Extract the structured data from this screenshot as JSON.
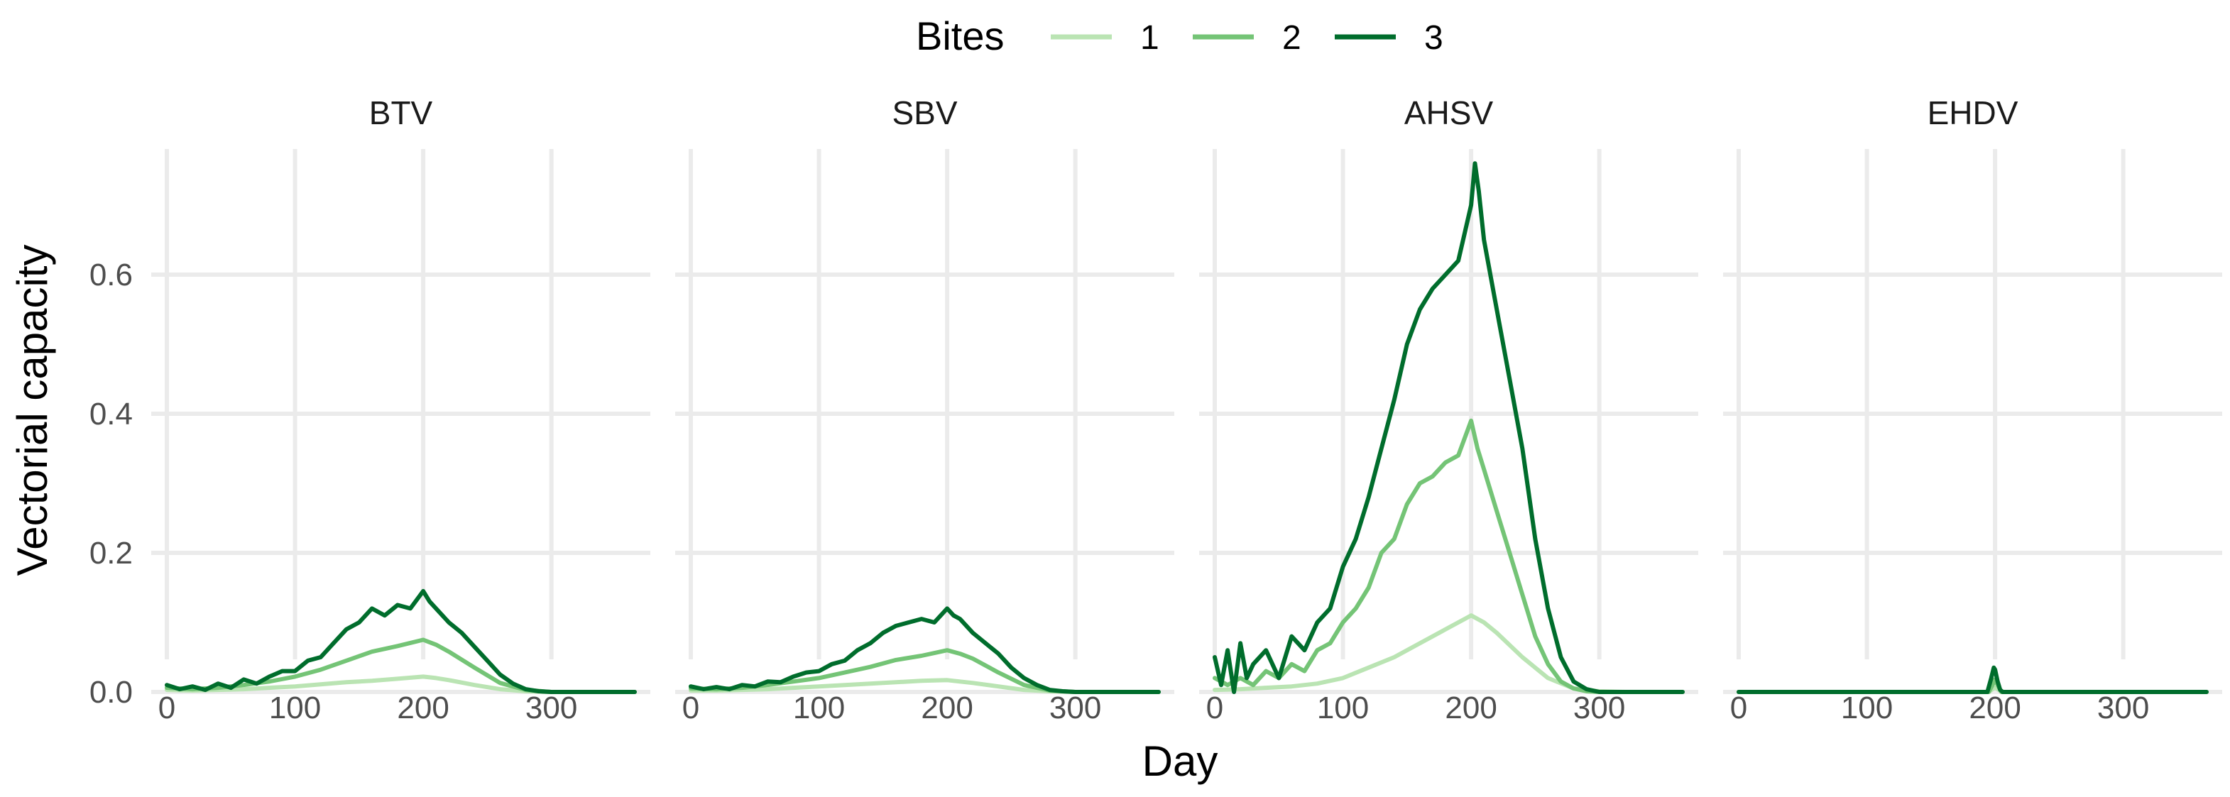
{
  "chart_data": {
    "type": "line",
    "facet_variable": "virus",
    "xlabel": "Day",
    "ylabel": "Vectorial capacity",
    "xlim": [
      0,
      365
    ],
    "ylim": [
      0,
      0.75
    ],
    "x_ticks": [
      0,
      100,
      200,
      300
    ],
    "y_ticks": [
      0.0,
      0.2,
      0.4,
      0.6
    ],
    "x_tick_labels": [
      "0",
      "100",
      "200",
      "300"
    ],
    "y_tick_labels": [
      "0.0",
      "0.2",
      "0.4",
      "0.6"
    ],
    "grid": true,
    "legend": {
      "title": "Bites",
      "position": "top",
      "entries": [
        {
          "label": "1",
          "color": "#bae4b3"
        },
        {
          "label": "2",
          "color": "#74c476"
        },
        {
          "label": "3",
          "color": "#006d2c"
        }
      ]
    },
    "facets": [
      {
        "title": "BTV",
        "series": [
          {
            "name": "1",
            "x": [
              0,
              20,
              40,
              60,
              80,
              100,
              120,
              140,
              160,
              180,
              200,
              210,
              220,
              240,
              260,
              280,
              300,
              320,
              340,
              365
            ],
            "y": [
              0.003,
              0.002,
              0.003,
              0.004,
              0.006,
              0.008,
              0.011,
              0.014,
              0.016,
              0.019,
              0.022,
              0.02,
              0.017,
              0.01,
              0.004,
              0.001,
              0.0,
              0.0,
              0.0,
              0.0
            ]
          },
          {
            "name": "2",
            "x": [
              0,
              20,
              40,
              60,
              80,
              100,
              120,
              140,
              160,
              180,
              200,
              210,
              220,
              240,
              260,
              280,
              300,
              320,
              340,
              365
            ],
            "y": [
              0.006,
              0.004,
              0.006,
              0.01,
              0.015,
              0.022,
              0.032,
              0.045,
              0.058,
              0.066,
              0.075,
              0.068,
              0.058,
              0.035,
              0.013,
              0.003,
              0.0,
              0.0,
              0.0,
              0.0
            ]
          },
          {
            "name": "3",
            "x": [
              0,
              10,
              20,
              30,
              40,
              50,
              60,
              70,
              80,
              90,
              100,
              110,
              120,
              130,
              140,
              150,
              160,
              170,
              180,
              190,
              200,
              205,
              210,
              220,
              230,
              240,
              250,
              260,
              270,
              280,
              290,
              300,
              320,
              340,
              365
            ],
            "y": [
              0.01,
              0.004,
              0.008,
              0.003,
              0.012,
              0.006,
              0.018,
              0.012,
              0.022,
              0.03,
              0.03,
              0.045,
              0.05,
              0.07,
              0.09,
              0.1,
              0.12,
              0.11,
              0.125,
              0.12,
              0.145,
              0.13,
              0.12,
              0.1,
              0.085,
              0.065,
              0.045,
              0.025,
              0.012,
              0.004,
              0.001,
              0.0,
              0.0,
              0.0,
              0.0
            ]
          }
        ]
      },
      {
        "title": "SBV",
        "series": [
          {
            "name": "1",
            "x": [
              0,
              20,
              40,
              60,
              80,
              100,
              120,
              140,
              160,
              180,
              200,
              220,
              240,
              260,
              280,
              300,
              320,
              340,
              365
            ],
            "y": [
              0.002,
              0.002,
              0.003,
              0.004,
              0.006,
              0.008,
              0.01,
              0.012,
              0.014,
              0.016,
              0.017,
              0.013,
              0.008,
              0.003,
              0.001,
              0.0,
              0.0,
              0.0,
              0.0
            ]
          },
          {
            "name": "2",
            "x": [
              0,
              20,
              40,
              60,
              80,
              100,
              120,
              140,
              160,
              180,
              200,
              210,
              220,
              240,
              260,
              280,
              300,
              320,
              340,
              365
            ],
            "y": [
              0.005,
              0.004,
              0.006,
              0.01,
              0.015,
              0.02,
              0.028,
              0.036,
              0.046,
              0.052,
              0.06,
              0.055,
              0.048,
              0.028,
              0.01,
              0.002,
              0.0,
              0.0,
              0.0,
              0.0
            ]
          },
          {
            "name": "3",
            "x": [
              0,
              10,
              20,
              30,
              40,
              50,
              60,
              70,
              80,
              90,
              100,
              110,
              120,
              130,
              140,
              150,
              160,
              170,
              180,
              190,
              200,
              205,
              210,
              220,
              230,
              240,
              250,
              260,
              270,
              280,
              290,
              300,
              320,
              340,
              365
            ],
            "y": [
              0.008,
              0.004,
              0.007,
              0.004,
              0.01,
              0.008,
              0.015,
              0.014,
              0.022,
              0.028,
              0.03,
              0.04,
              0.045,
              0.06,
              0.07,
              0.085,
              0.095,
              0.1,
              0.105,
              0.1,
              0.12,
              0.11,
              0.105,
              0.085,
              0.07,
              0.055,
              0.035,
              0.02,
              0.01,
              0.003,
              0.001,
              0.0,
              0.0,
              0.0,
              0.0
            ]
          }
        ]
      },
      {
        "title": "AHSV",
        "series": [
          {
            "name": "1",
            "x": [
              0,
              20,
              40,
              60,
              80,
              100,
              120,
              140,
              160,
              180,
              200,
              210,
              220,
              240,
              260,
              280,
              300,
              320,
              340,
              365
            ],
            "y": [
              0.003,
              0.004,
              0.006,
              0.008,
              0.012,
              0.02,
              0.035,
              0.05,
              0.07,
              0.09,
              0.11,
              0.1,
              0.085,
              0.05,
              0.02,
              0.005,
              0.001,
              0.0,
              0.0,
              0.0
            ]
          },
          {
            "name": "2",
            "x": [
              0,
              10,
              20,
              30,
              40,
              50,
              60,
              70,
              80,
              90,
              100,
              110,
              120,
              130,
              140,
              150,
              160,
              170,
              180,
              190,
              200,
              205,
              210,
              220,
              230,
              240,
              250,
              260,
              270,
              280,
              290,
              300,
              320,
              340,
              365
            ],
            "y": [
              0.02,
              0.01,
              0.02,
              0.01,
              0.03,
              0.02,
              0.04,
              0.03,
              0.06,
              0.07,
              0.1,
              0.12,
              0.15,
              0.2,
              0.22,
              0.27,
              0.3,
              0.31,
              0.33,
              0.34,
              0.39,
              0.35,
              0.32,
              0.26,
              0.2,
              0.14,
              0.08,
              0.04,
              0.015,
              0.005,
              0.001,
              0.0,
              0.0,
              0.0,
              0.0
            ]
          },
          {
            "name": "3",
            "x": [
              0,
              5,
              10,
              15,
              20,
              25,
              30,
              40,
              50,
              60,
              70,
              80,
              90,
              100,
              110,
              120,
              130,
              140,
              150,
              160,
              170,
              180,
              190,
              195,
              200,
              203,
              206,
              210,
              215,
              220,
              230,
              240,
              250,
              260,
              270,
              280,
              290,
              300,
              320,
              340,
              365
            ],
            "y": [
              0.05,
              0.01,
              0.06,
              0.0,
              0.07,
              0.02,
              0.04,
              0.06,
              0.02,
              0.08,
              0.06,
              0.1,
              0.12,
              0.18,
              0.22,
              0.28,
              0.35,
              0.42,
              0.5,
              0.55,
              0.58,
              0.6,
              0.62,
              0.66,
              0.7,
              0.76,
              0.72,
              0.65,
              0.6,
              0.55,
              0.45,
              0.35,
              0.22,
              0.12,
              0.05,
              0.015,
              0.004,
              0.0,
              0.0,
              0.0,
              0.0
            ]
          }
        ]
      },
      {
        "title": "EHDV",
        "series": [
          {
            "name": "1",
            "x": [
              0,
              195,
              198,
              200,
              202,
              205,
              365
            ],
            "y": [
              0.0,
              0.0,
              0.004,
              0.006,
              0.004,
              0.0,
              0.0
            ]
          },
          {
            "name": "2",
            "x": [
              0,
              195,
              198,
              200,
              202,
              205,
              365
            ],
            "y": [
              0.0,
              0.0,
              0.01,
              0.018,
              0.01,
              0.0,
              0.0
            ]
          },
          {
            "name": "3",
            "x": [
              0,
              194,
              197,
              199,
              200,
              202,
              204,
              206,
              365
            ],
            "y": [
              0.0,
              0.0,
              0.02,
              0.035,
              0.032,
              0.015,
              0.003,
              0.0,
              0.0
            ]
          }
        ]
      }
    ]
  }
}
